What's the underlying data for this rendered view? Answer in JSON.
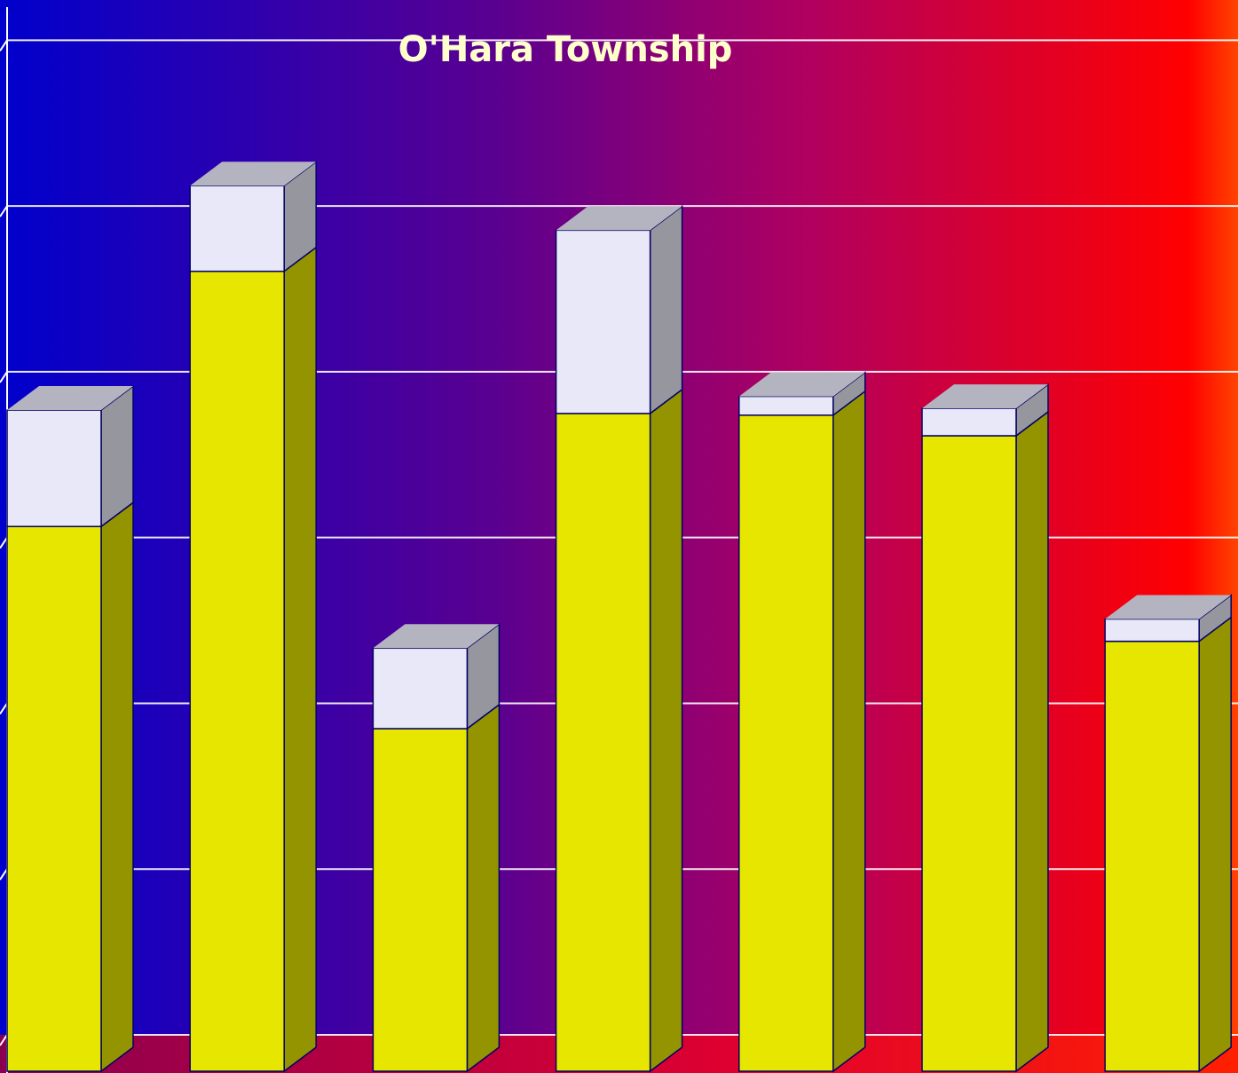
{
  "chart_data": {
    "type": "bar3d_stacked",
    "title": "O'Hara Township",
    "categories": [
      null,
      null,
      null,
      null,
      null,
      null,
      null
    ],
    "series": [
      {
        "color": "#e6e600",
        "side_color": "#949400",
        "values": [
          3.18,
          4.67,
          2.0,
          3.84,
          3.83,
          3.71,
          2.51
        ]
      },
      {
        "color": "#e8e8f8",
        "side_color": "#96969e",
        "top_color": "#b4b4c0",
        "values": [
          0.68,
          0.5,
          0.47,
          1.07,
          0.11,
          0.16,
          0.13
        ]
      }
    ],
    "ylim": [
      0,
      6.2
    ],
    "yticks": [
      0,
      1,
      2,
      3,
      4,
      5,
      6
    ],
    "grid": true
  }
}
